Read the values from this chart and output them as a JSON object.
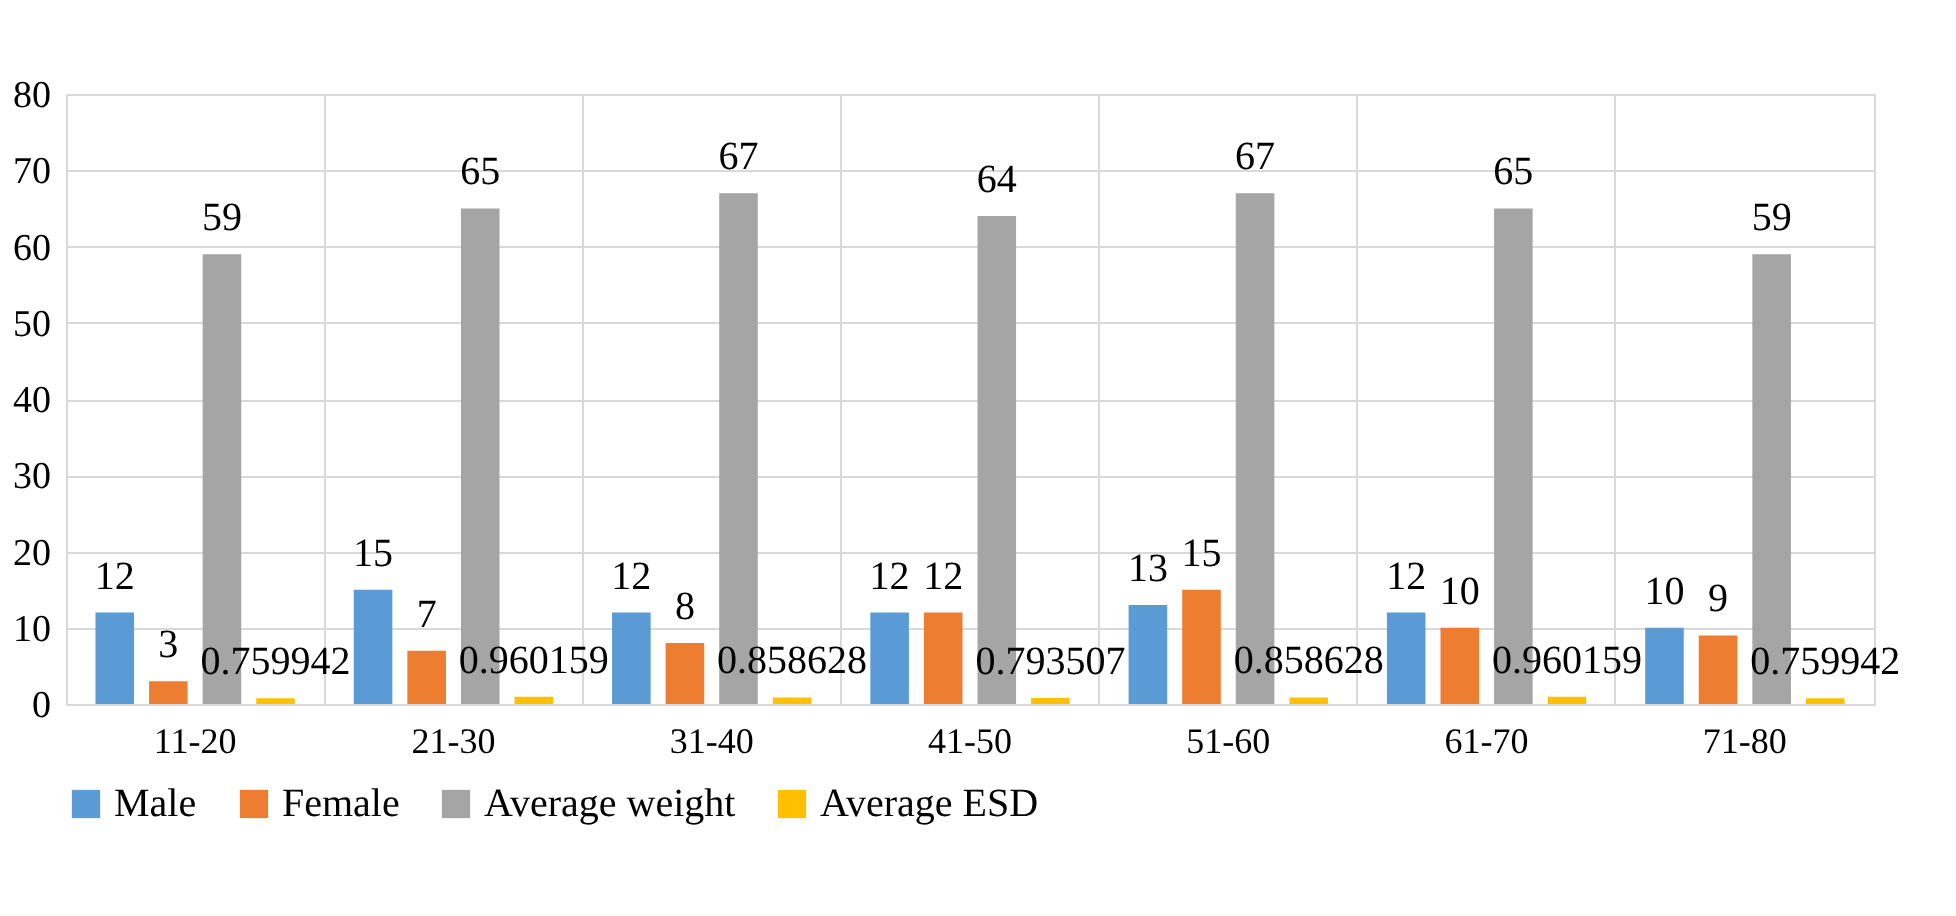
{
  "chart_data": {
    "type": "bar",
    "categories": [
      "11-20",
      "21-30",
      "31-40",
      "41-50",
      "51-60",
      "61-70",
      "71-80"
    ],
    "series": [
      {
        "name": "Male",
        "color": "#5b9bd5",
        "values": [
          12,
          15,
          12,
          12,
          13,
          12,
          10
        ]
      },
      {
        "name": "Female",
        "color": "#ed7d31",
        "values": [
          3,
          7,
          8,
          12,
          15,
          10,
          9
        ]
      },
      {
        "name": "Average weight",
        "color": "#a5a5a5",
        "values": [
          59,
          65,
          67,
          64,
          67,
          65,
          59
        ]
      },
      {
        "name": "Average ESD",
        "color": "#ffc000",
        "values": [
          0.759942,
          0.960159,
          0.858628,
          0.793507,
          0.858628,
          0.960159,
          0.759942
        ]
      }
    ],
    "ylim": [
      0,
      80
    ],
    "yticks": [
      0,
      10,
      20,
      30,
      40,
      50,
      60,
      70,
      80
    ],
    "grid": true,
    "legend": "bottom",
    "data_labels": true
  }
}
